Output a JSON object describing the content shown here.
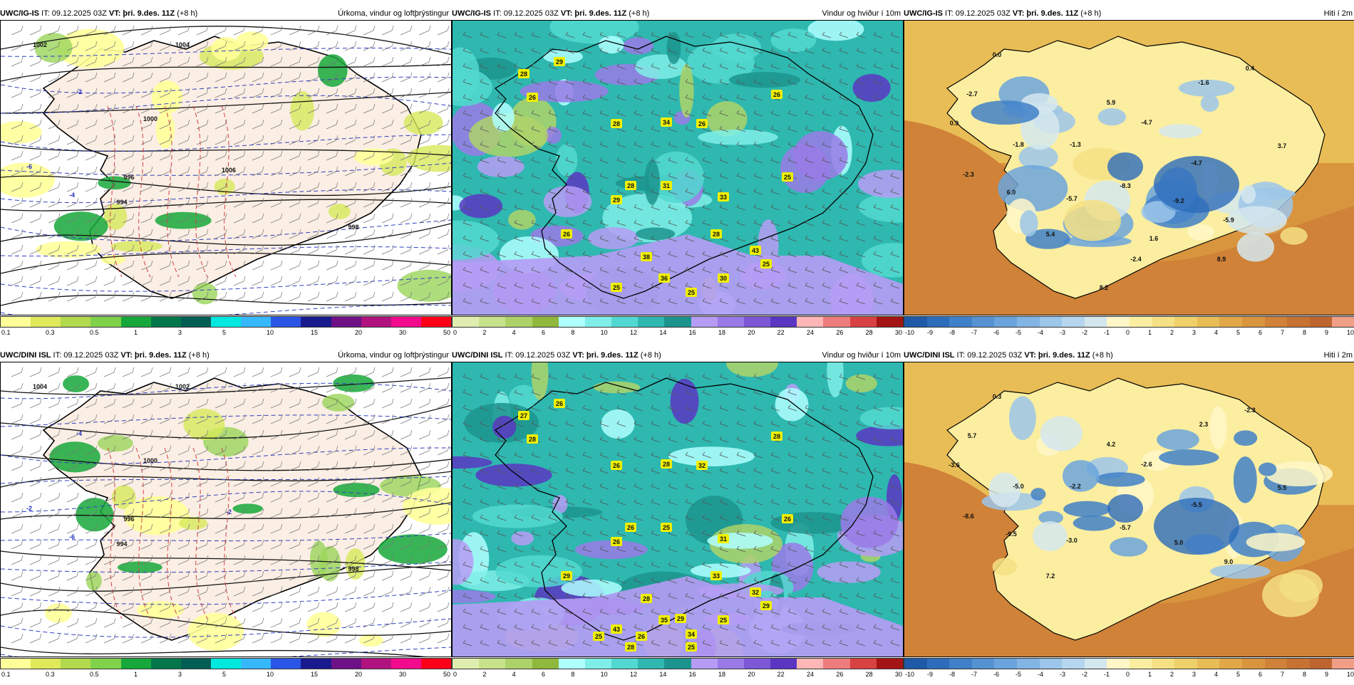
{
  "panels": [
    {
      "id": "p1",
      "model": "UWC/IG-IS",
      "it": " IT: 09.12.2025 03Z ",
      "vt_label": "VT:",
      "vt": " þri. 9.des. 11Z",
      "lead": " (+8 h)",
      "title": "Úrkoma, vindur og loftþrýstingur",
      "type": "precip",
      "labels": [
        {
          "t": "1002",
          "k": "isobar"
        },
        {
          "t": "1004",
          "k": "isobar"
        },
        {
          "t": "1000",
          "k": "isobar"
        },
        {
          "t": "998",
          "k": "isobar"
        },
        {
          "t": "996",
          "k": "isobar"
        },
        {
          "t": "994",
          "k": "isobar"
        },
        {
          "t": "1006",
          "k": "isobar"
        },
        {
          "t": "-2",
          "k": "temp"
        },
        {
          "t": "-4",
          "k": "temp"
        },
        {
          "t": "-6",
          "k": "temp"
        }
      ]
    },
    {
      "id": "p2",
      "model": "UWC/IG-IS",
      "it": " IT: 09.12.2025 03Z ",
      "vt_label": "VT:",
      "vt": " þri. 9.des. 11Z",
      "lead": " (+8 h)",
      "title": "Vindur og hviður í 10m",
      "type": "wind",
      "labels": [
        {
          "t": "29"
        },
        {
          "t": "28"
        },
        {
          "t": "26"
        },
        {
          "t": "26"
        },
        {
          "t": "28"
        },
        {
          "t": "34"
        },
        {
          "t": "26"
        },
        {
          "t": "28"
        },
        {
          "t": "29"
        },
        {
          "t": "31"
        },
        {
          "t": "33"
        },
        {
          "t": "25"
        },
        {
          "t": "26"
        },
        {
          "t": "28"
        },
        {
          "t": "43"
        },
        {
          "t": "38"
        },
        {
          "t": "36"
        },
        {
          "t": "30"
        },
        {
          "t": "25"
        },
        {
          "t": "25"
        },
        {
          "t": "25"
        }
      ]
    },
    {
      "id": "p3",
      "model": "UWC/IG-IS",
      "it": " IT: 09.12.2025 03Z ",
      "vt_label": "VT:",
      "vt": " þri. 9.des. 11Z",
      "lead": " (+8 h)",
      "title": "Hiti í 2m",
      "type": "temp",
      "labels": [
        {
          "t": "0.0"
        },
        {
          "t": "0.4"
        },
        {
          "t": "-2.7"
        },
        {
          "t": "-1.6"
        },
        {
          "t": "5.9"
        },
        {
          "t": "0.9"
        },
        {
          "t": "-4.7"
        },
        {
          "t": "-1.8"
        },
        {
          "t": "-1.3"
        },
        {
          "t": "3.7"
        },
        {
          "t": "-4.7"
        },
        {
          "t": "-2.3"
        },
        {
          "t": "6.0"
        },
        {
          "t": "-5.7"
        },
        {
          "t": "-8.3"
        },
        {
          "t": "-9.2"
        },
        {
          "t": "-5.9"
        },
        {
          "t": "5.4"
        },
        {
          "t": "1.6"
        },
        {
          "t": "-2.4"
        },
        {
          "t": "8.9"
        },
        {
          "t": "8.2"
        }
      ]
    },
    {
      "id": "p4",
      "model": "UWC/DINI ISL",
      "it": " IT: 09.12.2025 03Z ",
      "vt_label": "VT:",
      "vt": " þri. 9.des. 11Z",
      "lead": " (+8 h)",
      "title": "Úrkoma, vindur og loftþrýstingur",
      "type": "precip",
      "labels": [
        {
          "t": "1004",
          "k": "isobar"
        },
        {
          "t": "1002",
          "k": "isobar"
        },
        {
          "t": "1000",
          "k": "isobar"
        },
        {
          "t": "998",
          "k": "isobar"
        },
        {
          "t": "996",
          "k": "isobar"
        },
        {
          "t": "994",
          "k": "isobar"
        },
        {
          "t": "-2",
          "k": "temp"
        },
        {
          "t": "-4",
          "k": "temp"
        },
        {
          "t": "-6",
          "k": "temp"
        },
        {
          "t": "-2",
          "k": "temp"
        }
      ]
    },
    {
      "id": "p5",
      "model": "UWC/DINI ISL",
      "it": " IT: 09.12.2025 03Z ",
      "vt_label": "VT:",
      "vt": " þri. 9.des. 11Z",
      "lead": " (+8 h)",
      "title": "Vindur og hviður í 10m",
      "type": "wind",
      "labels": [
        {
          "t": "26"
        },
        {
          "t": "27"
        },
        {
          "t": "28"
        },
        {
          "t": "28"
        },
        {
          "t": "26"
        },
        {
          "t": "28"
        },
        {
          "t": "32"
        },
        {
          "t": "26"
        },
        {
          "t": "26"
        },
        {
          "t": "25"
        },
        {
          "t": "31"
        },
        {
          "t": "26"
        },
        {
          "t": "29"
        },
        {
          "t": "33"
        },
        {
          "t": "32"
        },
        {
          "t": "28"
        },
        {
          "t": "35"
        },
        {
          "t": "25"
        },
        {
          "t": "43"
        },
        {
          "t": "34"
        },
        {
          "t": "29"
        },
        {
          "t": "25"
        },
        {
          "t": "26"
        },
        {
          "t": "28"
        },
        {
          "t": "25"
        },
        {
          "t": "29"
        }
      ]
    },
    {
      "id": "p6",
      "model": "UWC/DINI ISL",
      "it": " IT: 09.12.2025 03Z ",
      "vt_label": "VT:",
      "vt": " þri. 9.des. 11Z",
      "lead": " (+8 h)",
      "title": "Hiti í 2m",
      "type": "temp",
      "labels": [
        {
          "t": "0.3"
        },
        {
          "t": "-2.3"
        },
        {
          "t": "5.7"
        },
        {
          "t": "2.3"
        },
        {
          "t": "4.2"
        },
        {
          "t": "-3.6"
        },
        {
          "t": "-2.6"
        },
        {
          "t": "-5.0"
        },
        {
          "t": "-2.2"
        },
        {
          "t": "5.5"
        },
        {
          "t": "-5.5"
        },
        {
          "t": "-8.6"
        },
        {
          "t": "-9.5"
        },
        {
          "t": "-3.0"
        },
        {
          "t": "-5.7"
        },
        {
          "t": "5.0"
        },
        {
          "t": "9.0"
        },
        {
          "t": "7.2"
        }
      ]
    }
  ],
  "legends": {
    "precip": {
      "colors": [
        "#ffff99",
        "#dfe95a",
        "#b3d94d",
        "#7fd24a",
        "#16a83a",
        "#00774a",
        "#005e55",
        "#00e8e0",
        "#36b8ff",
        "#2b55e6",
        "#1a1a8f",
        "#6e1187",
        "#b0127f",
        "#f20b8c",
        "#ff0019"
      ],
      "ticks": [
        "0.1",
        "0.3",
        "0.5",
        "1",
        "3",
        "5",
        "10",
        "15",
        "20",
        "30",
        "50"
      ]
    },
    "wind": {
      "colors": [
        "#dfeeb0",
        "#c7e28a",
        "#aed26a",
        "#90b83c",
        "#afffff",
        "#7feee8",
        "#52d8d0",
        "#2eb8b0",
        "#1c948e",
        "#b69cf5",
        "#9a7ae8",
        "#7d57d6",
        "#5a36c2",
        "#ffb6b6",
        "#ef7c7c",
        "#d84242",
        "#a51414"
      ],
      "ticks": [
        "0",
        "2",
        "4",
        "6",
        "8",
        "10",
        "12",
        "14",
        "16",
        "18",
        "20",
        "22",
        "24",
        "26",
        "28",
        "30"
      ]
    },
    "temp": {
      "colors": [
        "#1e5aa8",
        "#2d6cba",
        "#3f80c8",
        "#5592d2",
        "#6ba4dc",
        "#82b5e4",
        "#9cc6ea",
        "#b6d6ef",
        "#d5e7ee",
        "#fff7c8",
        "#fbeea0",
        "#f5e084",
        "#f0d06a",
        "#e9bd56",
        "#e2a848",
        "#d9953e",
        "#cf8238",
        "#c67232",
        "#be642f",
        "#f09e86"
      ],
      "ticks": [
        "-10",
        "-9",
        "-8",
        "-7",
        "-6",
        "-5",
        "-4",
        "-3",
        "-2",
        "-1",
        "0",
        "1",
        "2",
        "3",
        "4",
        "5",
        "6",
        "7",
        "8",
        "9",
        "10"
      ]
    }
  }
}
